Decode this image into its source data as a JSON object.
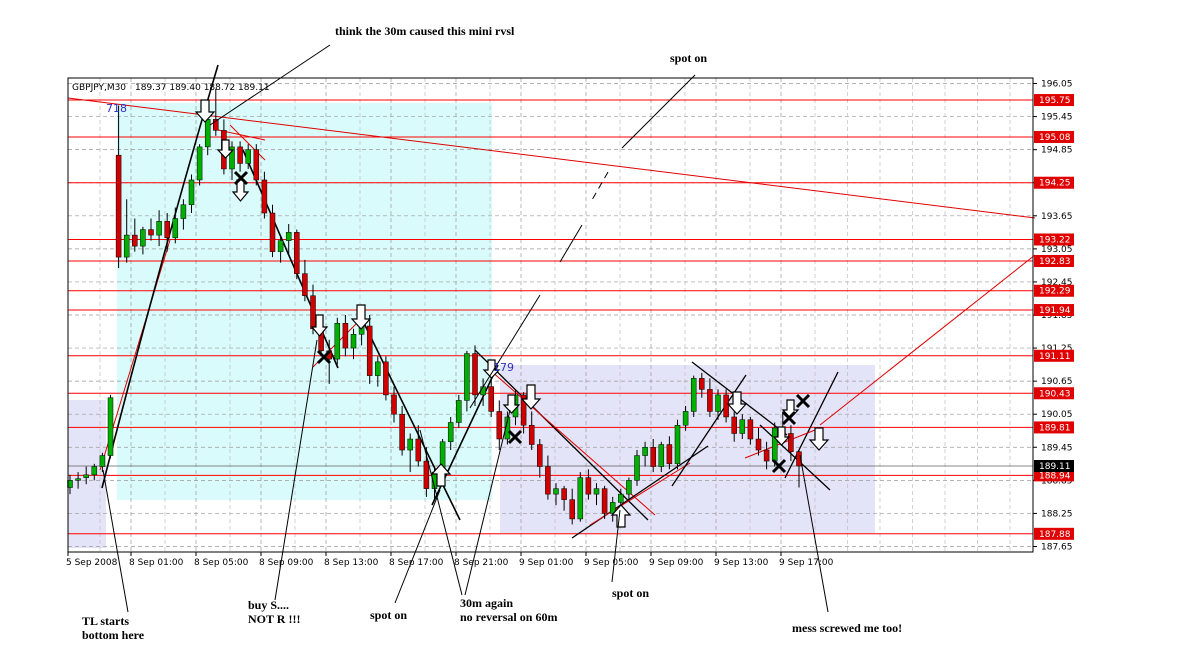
{
  "header": {
    "symbol": "GBPJPY,M30",
    "ohlc": "189.37 189.40 188.72 189.11"
  },
  "chart_data": {
    "type": "candlestick",
    "symbol": "GBPJPY",
    "timeframe": "M30",
    "ylim": [
      187.55,
      196.15
    ],
    "x_tick_labels": [
      "5 Sep 2008",
      "8 Sep 01:00",
      "8 Sep 05:00",
      "8 Sep 09:00",
      "8 Sep 13:00",
      "8 Sep 17:00",
      "8 Sep 21:00",
      "9 Sep 01:00",
      "9 Sep 05:00",
      "9 Sep 09:00",
      "9 Sep 13:00",
      "9 Sep 17:00"
    ],
    "y_tick_labels": [
      "196.05",
      "195.45",
      "194.85",
      "194.25",
      "193.65",
      "193.05",
      "192.45",
      "191.85",
      "191.25",
      "190.65",
      "190.05",
      "189.45",
      "188.85",
      "188.25",
      "187.65"
    ],
    "price_lines": [
      {
        "label": "195.75",
        "value": 195.75
      },
      {
        "label": "195.08",
        "value": 195.08
      },
      {
        "label": "194.25",
        "value": 194.25
      },
      {
        "label": "193.22",
        "value": 193.22
      },
      {
        "label": "192.83",
        "value": 192.83
      },
      {
        "label": "192.29",
        "value": 192.29
      },
      {
        "label": "191.94",
        "value": 191.94
      },
      {
        "label": "191.11",
        "value": 191.11
      },
      {
        "label": "190.43",
        "value": 190.43
      },
      {
        "label": "189.81",
        "value": 189.81
      },
      {
        "label": "188.94",
        "value": 188.94
      },
      {
        "label": "187.88",
        "value": 187.88
      }
    ],
    "current_price": "189.11",
    "object_labels": [
      "718",
      "179"
    ],
    "candles": [
      {
        "o": 188.72,
        "h": 188.95,
        "l": 188.6,
        "c": 188.85
      },
      {
        "o": 188.85,
        "h": 189.0,
        "l": 188.7,
        "c": 188.88
      },
      {
        "o": 188.9,
        "h": 189.1,
        "l": 188.78,
        "c": 188.95
      },
      {
        "o": 188.95,
        "h": 189.15,
        "l": 188.85,
        "c": 189.1
      },
      {
        "o": 189.1,
        "h": 189.35,
        "l": 189.0,
        "c": 189.3
      },
      {
        "o": 189.3,
        "h": 190.4,
        "l": 189.25,
        "c": 190.35
      },
      {
        "o": 194.75,
        "h": 195.65,
        "l": 192.7,
        "c": 192.9
      },
      {
        "o": 192.9,
        "h": 193.95,
        "l": 192.8,
        "c": 193.3
      },
      {
        "o": 193.3,
        "h": 193.6,
        "l": 193.0,
        "c": 193.1
      },
      {
        "o": 193.1,
        "h": 193.45,
        "l": 192.95,
        "c": 193.4
      },
      {
        "o": 193.4,
        "h": 193.6,
        "l": 193.2,
        "c": 193.3
      },
      {
        "o": 193.3,
        "h": 193.75,
        "l": 193.1,
        "c": 193.55
      },
      {
        "o": 193.55,
        "h": 193.7,
        "l": 193.0,
        "c": 193.25
      },
      {
        "o": 193.25,
        "h": 193.8,
        "l": 193.15,
        "c": 193.6
      },
      {
        "o": 193.6,
        "h": 193.95,
        "l": 193.4,
        "c": 193.85
      },
      {
        "o": 193.85,
        "h": 194.4,
        "l": 193.7,
        "c": 194.3
      },
      {
        "o": 194.3,
        "h": 194.95,
        "l": 194.2,
        "c": 194.9
      },
      {
        "o": 194.9,
        "h": 195.5,
        "l": 194.75,
        "c": 195.4
      },
      {
        "o": 195.4,
        "h": 195.95,
        "l": 195.1,
        "c": 195.2
      },
      {
        "o": 195.2,
        "h": 195.4,
        "l": 194.4,
        "c": 194.5
      },
      {
        "o": 194.5,
        "h": 195.0,
        "l": 194.3,
        "c": 194.9
      },
      {
        "o": 194.9,
        "h": 195.0,
        "l": 194.45,
        "c": 194.6
      },
      {
        "o": 194.6,
        "h": 194.95,
        "l": 194.5,
        "c": 194.85
      },
      {
        "o": 194.85,
        "h": 194.95,
        "l": 194.2,
        "c": 194.3
      },
      {
        "o": 194.3,
        "h": 194.45,
        "l": 193.6,
        "c": 193.7
      },
      {
        "o": 193.7,
        "h": 193.85,
        "l": 192.9,
        "c": 193.0
      },
      {
        "o": 193.0,
        "h": 193.3,
        "l": 192.8,
        "c": 193.2
      },
      {
        "o": 193.2,
        "h": 193.5,
        "l": 192.95,
        "c": 193.35
      },
      {
        "o": 193.35,
        "h": 193.4,
        "l": 192.5,
        "c": 192.6
      },
      {
        "o": 192.6,
        "h": 192.85,
        "l": 192.1,
        "c": 192.2
      },
      {
        "o": 192.2,
        "h": 192.4,
        "l": 191.5,
        "c": 191.6
      },
      {
        "o": 191.6,
        "h": 191.85,
        "l": 191.1,
        "c": 191.2
      },
      {
        "o": 191.2,
        "h": 191.4,
        "l": 190.6,
        "c": 191.05
      },
      {
        "o": 191.05,
        "h": 191.8,
        "l": 190.95,
        "c": 191.7
      },
      {
        "o": 191.7,
        "h": 191.85,
        "l": 191.1,
        "c": 191.25
      },
      {
        "o": 191.25,
        "h": 191.6,
        "l": 191.05,
        "c": 191.5
      },
      {
        "o": 191.5,
        "h": 191.75,
        "l": 191.3,
        "c": 191.65
      },
      {
        "o": 191.65,
        "h": 191.85,
        "l": 190.6,
        "c": 190.75
      },
      {
        "o": 190.75,
        "h": 191.1,
        "l": 190.55,
        "c": 191.0
      },
      {
        "o": 191.0,
        "h": 191.1,
        "l": 190.3,
        "c": 190.4
      },
      {
        "o": 190.4,
        "h": 190.55,
        "l": 189.9,
        "c": 190.05
      },
      {
        "o": 190.05,
        "h": 190.2,
        "l": 189.3,
        "c": 189.4
      },
      {
        "o": 189.4,
        "h": 189.7,
        "l": 189.0,
        "c": 189.6
      },
      {
        "o": 189.6,
        "h": 189.85,
        "l": 189.1,
        "c": 189.2
      },
      {
        "o": 189.2,
        "h": 189.45,
        "l": 188.55,
        "c": 188.7
      },
      {
        "o": 188.7,
        "h": 189.1,
        "l": 188.5,
        "c": 189.0
      },
      {
        "o": 189.0,
        "h": 189.6,
        "l": 188.9,
        "c": 189.55
      },
      {
        "o": 189.55,
        "h": 190.0,
        "l": 189.4,
        "c": 189.9
      },
      {
        "o": 189.9,
        "h": 190.4,
        "l": 189.8,
        "c": 190.3
      },
      {
        "o": 190.3,
        "h": 191.2,
        "l": 190.1,
        "c": 191.15
      },
      {
        "o": 191.15,
        "h": 191.3,
        "l": 190.2,
        "c": 190.4
      },
      {
        "o": 190.4,
        "h": 190.7,
        "l": 190.2,
        "c": 190.55
      },
      {
        "o": 190.55,
        "h": 190.95,
        "l": 190.0,
        "c": 190.1
      },
      {
        "o": 190.1,
        "h": 190.3,
        "l": 189.4,
        "c": 189.6
      },
      {
        "o": 189.6,
        "h": 190.1,
        "l": 189.5,
        "c": 190.0
      },
      {
        "o": 190.0,
        "h": 190.5,
        "l": 189.85,
        "c": 190.4
      },
      {
        "o": 190.4,
        "h": 190.45,
        "l": 189.7,
        "c": 189.85
      },
      {
        "o": 189.85,
        "h": 190.1,
        "l": 189.4,
        "c": 189.5
      },
      {
        "o": 189.5,
        "h": 189.6,
        "l": 188.9,
        "c": 189.1
      },
      {
        "o": 189.1,
        "h": 189.3,
        "l": 188.5,
        "c": 188.6
      },
      {
        "o": 188.6,
        "h": 188.8,
        "l": 188.4,
        "c": 188.7
      },
      {
        "o": 188.7,
        "h": 188.75,
        "l": 188.3,
        "c": 188.5
      },
      {
        "o": 188.5,
        "h": 188.7,
        "l": 188.05,
        "c": 188.15
      },
      {
        "o": 188.15,
        "h": 189.0,
        "l": 188.1,
        "c": 188.9
      },
      {
        "o": 188.9,
        "h": 189.05,
        "l": 188.5,
        "c": 188.6
      },
      {
        "o": 188.6,
        "h": 188.8,
        "l": 188.4,
        "c": 188.7
      },
      {
        "o": 188.7,
        "h": 188.75,
        "l": 188.15,
        "c": 188.25
      },
      {
        "o": 188.25,
        "h": 188.55,
        "l": 188.1,
        "c": 188.45
      },
      {
        "o": 188.45,
        "h": 188.7,
        "l": 188.35,
        "c": 188.6
      },
      {
        "o": 188.6,
        "h": 188.9,
        "l": 188.5,
        "c": 188.85
      },
      {
        "o": 188.85,
        "h": 189.4,
        "l": 188.75,
        "c": 189.3
      },
      {
        "o": 189.3,
        "h": 189.55,
        "l": 189.1,
        "c": 189.45
      },
      {
        "o": 189.45,
        "h": 189.6,
        "l": 189.0,
        "c": 189.1
      },
      {
        "o": 189.1,
        "h": 189.55,
        "l": 189.0,
        "c": 189.5
      },
      {
        "o": 189.5,
        "h": 189.65,
        "l": 189.05,
        "c": 189.15
      },
      {
        "o": 189.15,
        "h": 189.95,
        "l": 189.05,
        "c": 189.85
      },
      {
        "o": 189.85,
        "h": 190.2,
        "l": 189.75,
        "c": 190.1
      },
      {
        "o": 190.1,
        "h": 190.75,
        "l": 190.0,
        "c": 190.7
      },
      {
        "o": 190.7,
        "h": 190.8,
        "l": 190.35,
        "c": 190.5
      },
      {
        "o": 190.5,
        "h": 190.7,
        "l": 190.0,
        "c": 190.1
      },
      {
        "o": 190.1,
        "h": 190.5,
        "l": 189.95,
        "c": 190.4
      },
      {
        "o": 190.4,
        "h": 190.5,
        "l": 189.9,
        "c": 190.0
      },
      {
        "o": 190.0,
        "h": 190.2,
        "l": 189.55,
        "c": 189.7
      },
      {
        "o": 189.7,
        "h": 190.05,
        "l": 189.6,
        "c": 189.95
      },
      {
        "o": 189.95,
        "h": 190.0,
        "l": 189.5,
        "c": 189.6
      },
      {
        "o": 189.6,
        "h": 189.8,
        "l": 189.3,
        "c": 189.4
      },
      {
        "o": 189.4,
        "h": 189.55,
        "l": 189.05,
        "c": 189.2
      },
      {
        "o": 189.2,
        "h": 189.9,
        "l": 189.1,
        "c": 189.8
      },
      {
        "o": 189.8,
        "h": 190.1,
        "l": 189.6,
        "c": 189.7
      },
      {
        "o": 189.7,
        "h": 189.85,
        "l": 189.2,
        "c": 189.37
      },
      {
        "o": 189.37,
        "h": 189.4,
        "l": 188.72,
        "c": 189.11
      }
    ]
  },
  "annotations": [
    {
      "text": "think the 30m caused this mini rvsl"
    },
    {
      "text": "spot on"
    },
    {
      "text": "TL starts\nbottom here"
    },
    {
      "text": "buy S....\nNOT R !!!"
    },
    {
      "text": "spot on"
    },
    {
      "text": "30m again\nno reversal on 60m"
    },
    {
      "text": "spot on"
    },
    {
      "text": "mess screwed me too!"
    }
  ],
  "colors": {
    "bull": "#00b000",
    "bear": "#d00000",
    "hline": "#ff0000",
    "cyan_zone": "#d9fbfb",
    "lavender_zone": "#e4e4f8",
    "grid": "#a0a0a0",
    "current_box": "#000000"
  }
}
